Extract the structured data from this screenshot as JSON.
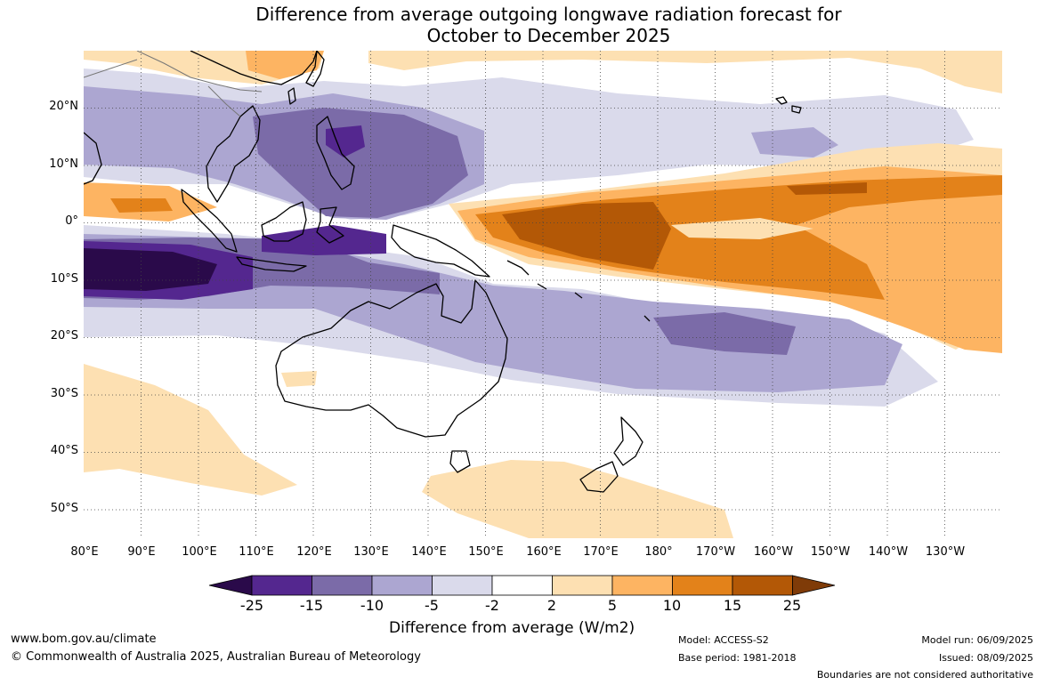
{
  "title": {
    "line1": "Difference from average outgoing longwave radiation forecast for",
    "line2": "October to December 2025"
  },
  "map": {
    "lat_labels": [
      "20°N",
      "10°N",
      "0°",
      "10°S",
      "20°S",
      "30°S",
      "40°S",
      "50°S"
    ],
    "lon_labels": [
      "80°E",
      "90°E",
      "100°E",
      "110°E",
      "120°E",
      "130°E",
      "140°E",
      "150°E",
      "160°E",
      "170°E",
      "180°",
      "170°W",
      "160°W",
      "150°W",
      "140°W",
      "130°W"
    ],
    "gridlines": "dotted",
    "projection": "equirectangular",
    "lat_range": [
      -55,
      30
    ],
    "lon_range": [
      80,
      240
    ]
  },
  "colorbar": {
    "ticks": [
      "-25",
      "-15",
      "-10",
      "-5",
      "-2",
      "2",
      "5",
      "10",
      "15",
      "25"
    ],
    "colors": [
      "#2a0a4a",
      "#54278f",
      "#7b6ba8",
      "#aca6d1",
      "#dadaeb",
      "#ffffff",
      "#fde0b2",
      "#fdb462",
      "#e3821a",
      "#b35806",
      "#7f3b08"
    ],
    "label": "Difference from average (W/m2)"
  },
  "footer": {
    "website": "www.bom.gov.au/climate",
    "copyright": "© Commonwealth of Australia 2025, Australian Bureau of Meteorology",
    "model": "Model: ACCESS-S2",
    "base_period": "Base period: 1981-2018",
    "model_run": "Model run: 06/09/2025",
    "issued": "Issued: 08/09/2025",
    "disclaimer": "Boundaries are not considered authoritative"
  }
}
